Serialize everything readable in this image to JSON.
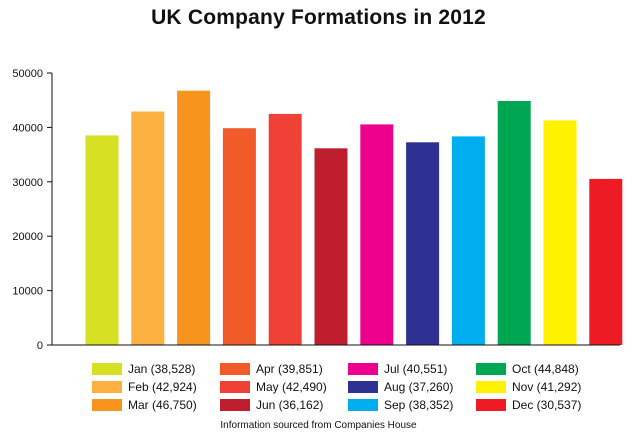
{
  "chart_data": {
    "type": "bar",
    "title": "UK Company Formations in 2012",
    "note": "Information sourced from Companies House",
    "categories": [
      "Jan",
      "Feb",
      "Mar",
      "Apr",
      "May",
      "Jun",
      "Jul",
      "Aug",
      "Sep",
      "Oct",
      "Nov",
      "Dec"
    ],
    "values": [
      38528,
      42924,
      46750,
      39851,
      42490,
      36162,
      40551,
      37260,
      38352,
      44848,
      41292,
      30537
    ],
    "colors": [
      "#d6e124",
      "#fbb040",
      "#f7941d",
      "#f15a29",
      "#ef4136",
      "#be1e2d",
      "#ec008c",
      "#2e3192",
      "#00aeef",
      "#00a651",
      "#fff200",
      "#ed1c24"
    ],
    "legend_labels": [
      "Jan (38,528)",
      "Feb (42,924)",
      "Mar (46,750)",
      "Apr (39,851)",
      "May (42,490)",
      "Jun (36,162)",
      "Jul (40,551)",
      "Aug (37,260)",
      "Sep (38,352)",
      "Oct (44,848)",
      "Nov (41,292)",
      "Dec (30,537)"
    ],
    "ylim": [
      0,
      50000
    ],
    "yticks": [
      "0",
      "10000",
      "20000",
      "30000",
      "40000",
      "50000"
    ],
    "xlabel": "",
    "ylabel": "",
    "grid": false,
    "legend_position": "bottom"
  }
}
